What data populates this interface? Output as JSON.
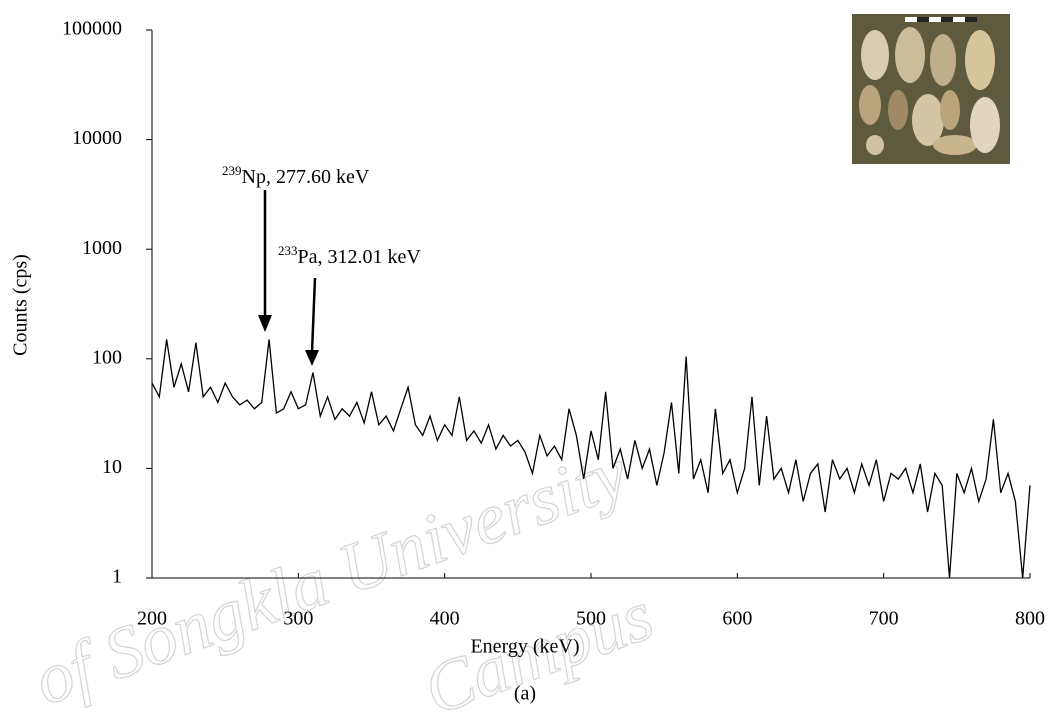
{
  "chart_data": {
    "type": "line",
    "xlabel": "Energy (keV)",
    "ylabel": "Counts (cps)",
    "caption": "(a)",
    "color": "#000000",
    "log_y": true,
    "xlim": [
      200,
      800
    ],
    "xticks": [
      200,
      300,
      400,
      500,
      600,
      700,
      800
    ],
    "ylim": [
      1,
      100000
    ],
    "yticks": [
      1,
      10,
      100,
      1000,
      10000,
      100000
    ],
    "annotations": [
      {
        "sup": "239",
        "text": "Np, 277.60 keV"
      },
      {
        "sup": "233",
        "text": "Pa, 312.01 keV"
      }
    ],
    "watermark": [
      "of Songkla University",
      "Campus"
    ],
    "x": [
      200,
      205,
      210,
      215,
      220,
      225,
      230,
      235,
      240,
      245,
      250,
      255,
      260,
      265,
      270,
      275,
      280,
      285,
      290,
      295,
      300,
      305,
      310,
      315,
      320,
      325,
      330,
      335,
      340,
      345,
      350,
      355,
      360,
      365,
      370,
      375,
      380,
      385,
      390,
      395,
      400,
      405,
      410,
      415,
      420,
      425,
      430,
      435,
      440,
      445,
      450,
      455,
      460,
      465,
      470,
      475,
      480,
      485,
      490,
      495,
      500,
      505,
      510,
      515,
      520,
      525,
      530,
      535,
      540,
      545,
      550,
      555,
      560,
      565,
      570,
      575,
      580,
      585,
      590,
      595,
      600,
      605,
      610,
      615,
      620,
      625,
      630,
      635,
      640,
      645,
      650,
      655,
      660,
      665,
      670,
      675,
      680,
      685,
      690,
      695,
      700,
      705,
      710,
      715,
      720,
      725,
      730,
      735,
      740,
      745,
      750,
      755,
      760,
      765,
      770,
      775,
      780,
      785,
      790,
      795,
      800
    ],
    "values": [
      60,
      45,
      150,
      55,
      90,
      50,
      140,
      45,
      55,
      40,
      60,
      45,
      38,
      42,
      35,
      40,
      150,
      32,
      35,
      50,
      35,
      38,
      75,
      30,
      45,
      28,
      35,
      30,
      40,
      26,
      50,
      25,
      30,
      22,
      35,
      55,
      25,
      20,
      30,
      18,
      25,
      20,
      45,
      18,
      22,
      17,
      25,
      15,
      20,
      16,
      18,
      14,
      9,
      20,
      13,
      16,
      12,
      35,
      20,
      8,
      22,
      12,
      50,
      10,
      15,
      8,
      18,
      10,
      15,
      7,
      14,
      40,
      9,
      105,
      8,
      12,
      6,
      35,
      9,
      12,
      6,
      10,
      45,
      7,
      30,
      8,
      10,
      6,
      12,
      5,
      9,
      11,
      4,
      12,
      8,
      10,
      6,
      11,
      7,
      12,
      5,
      9,
      8,
      10,
      6,
      11,
      4,
      9,
      7,
      1,
      9,
      6,
      10,
      5,
      8,
      28,
      6,
      9,
      5,
      1,
      7
    ]
  }
}
